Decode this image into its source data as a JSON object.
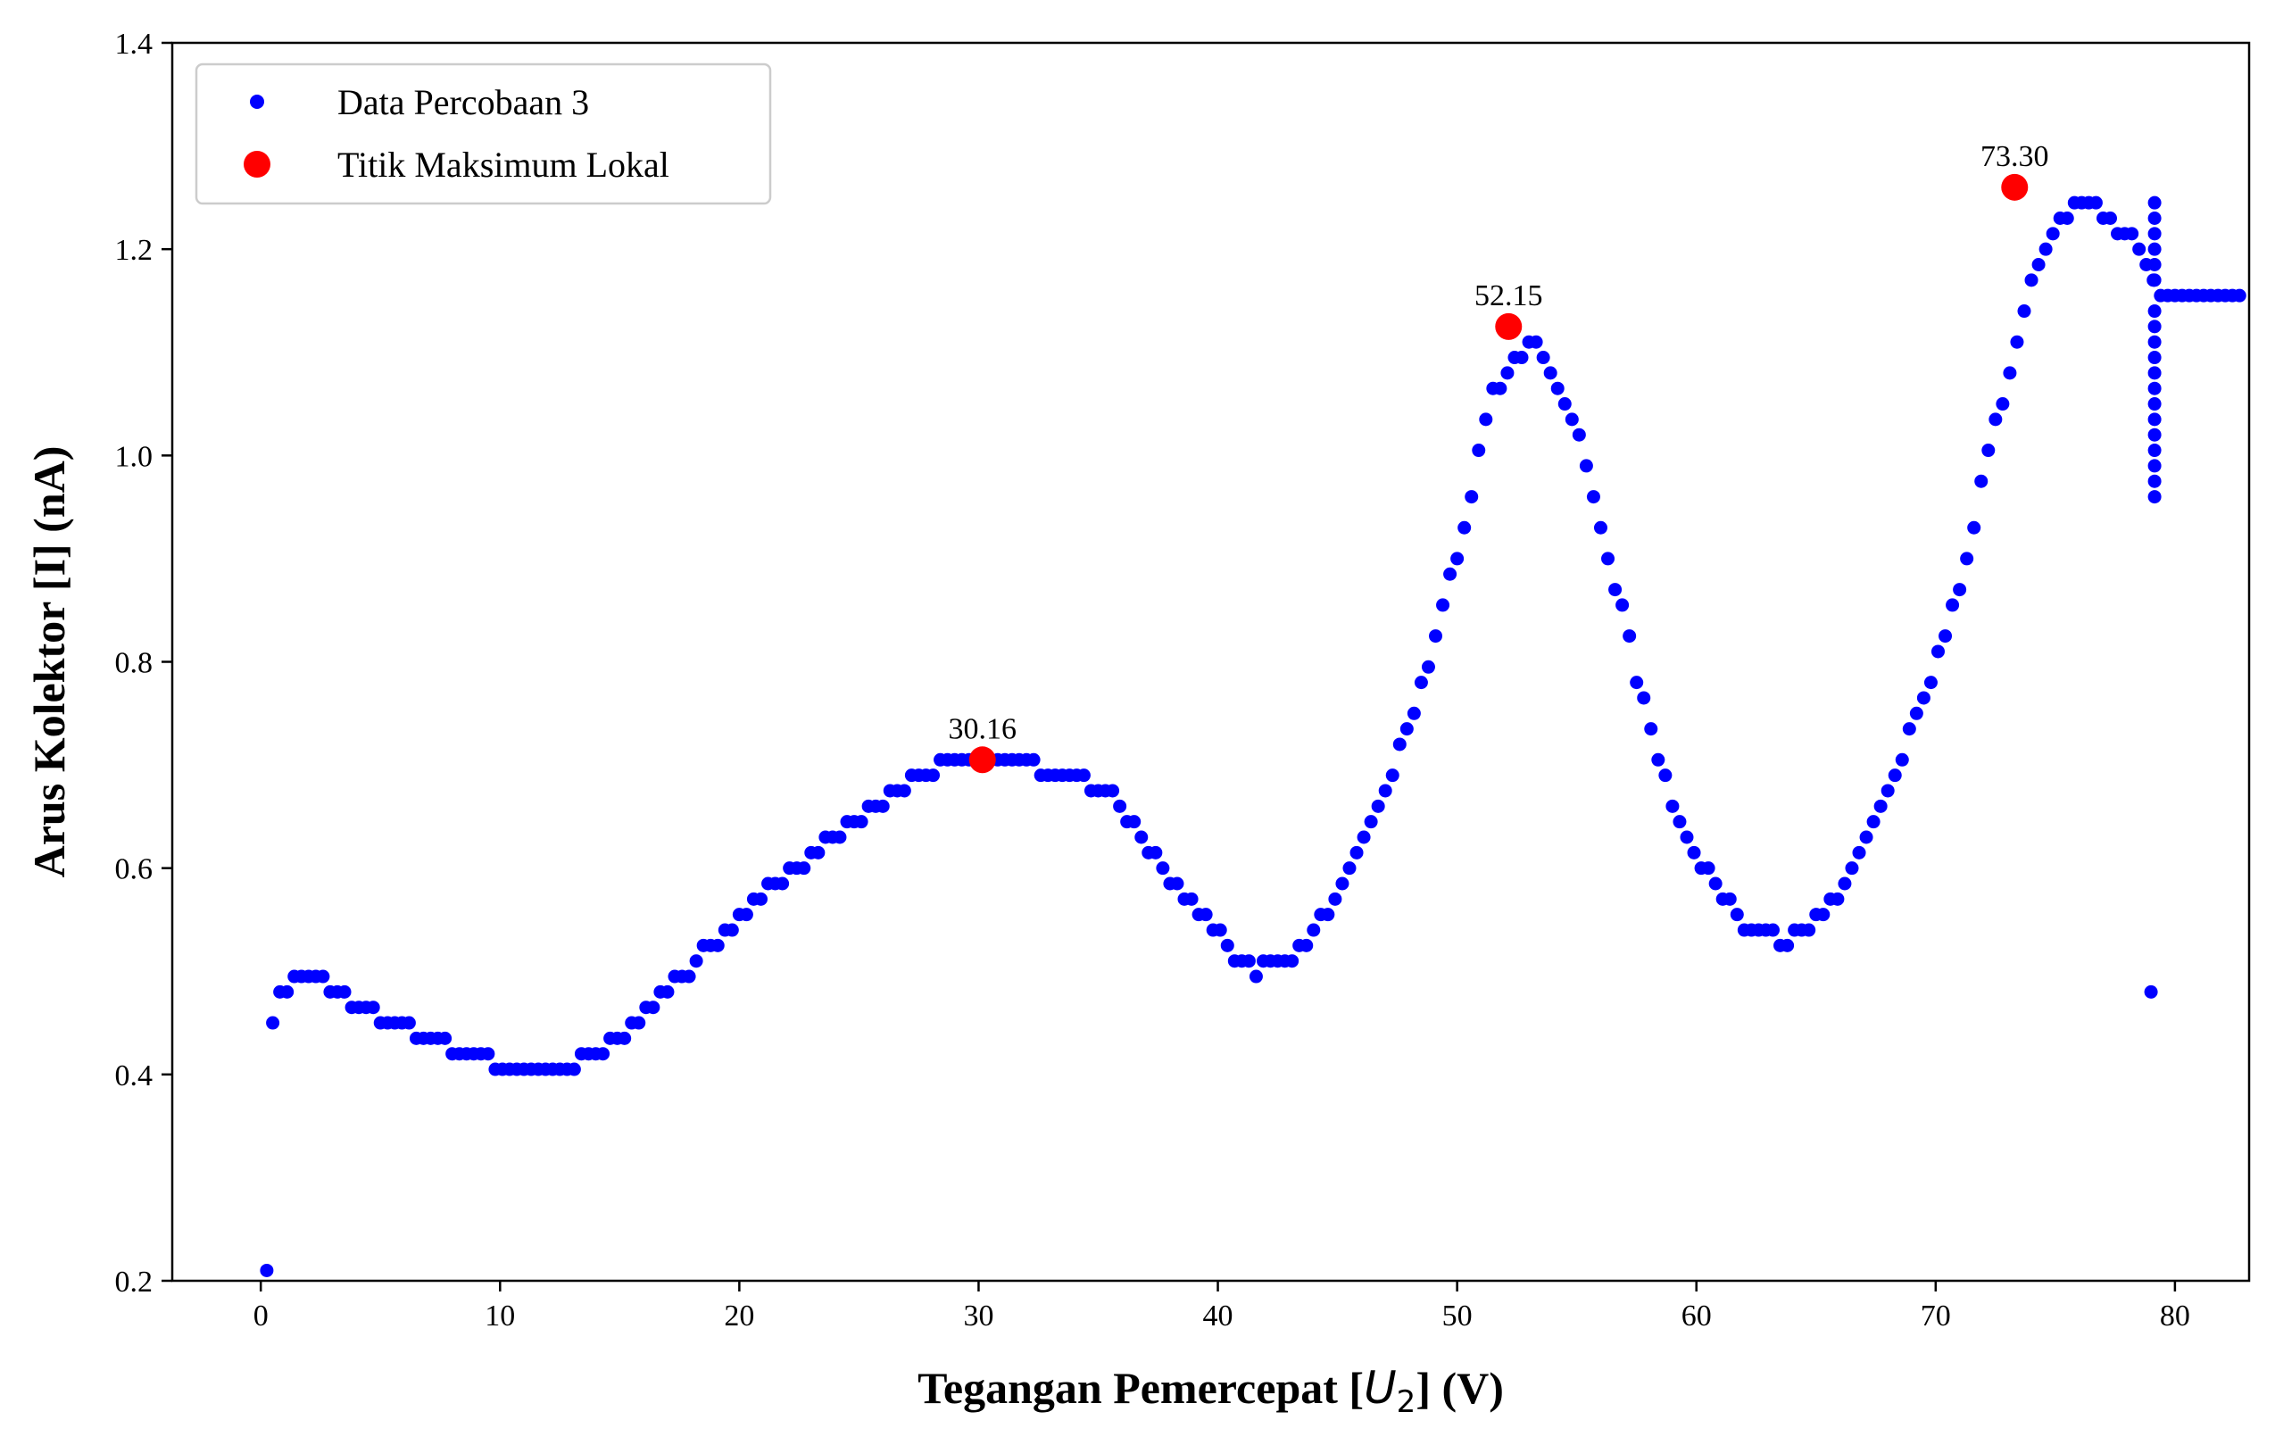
{
  "chart_data": {
    "type": "scatter",
    "xlabel_prefix": "Tegangan Pemercepat [",
    "xlabel_math_var": "U",
    "xlabel_math_sub": "2",
    "xlabel_suffix": "] (V)",
    "ylabel": "Arus Kolektor [I] (nA)",
    "xlim": [
      -3.7,
      83.1
    ],
    "ylim": [
      0.2,
      1.4
    ],
    "xticks": [
      0,
      10,
      20,
      30,
      40,
      50,
      60,
      70,
      80
    ],
    "yticks": [
      0.2,
      0.4,
      0.6,
      0.8,
      1.0,
      1.2,
      1.4
    ],
    "ytick_labels": [
      "0.2",
      "0.4",
      "0.6",
      "0.8",
      "1.0",
      "1.2",
      "1.4"
    ],
    "grid": false,
    "legend_position": "upper-left",
    "series": [
      {
        "name": "Data Percobaan 3",
        "color": "#0000ff",
        "marker": "small-dot",
        "points": [
          [
            0.25,
            0.21
          ],
          [
            0.5,
            0.45
          ],
          [
            0.8,
            0.48
          ],
          [
            1.1,
            0.48
          ],
          [
            1.4,
            0.495
          ],
          [
            1.7,
            0.495
          ],
          [
            2.0,
            0.495
          ],
          [
            2.3,
            0.495
          ],
          [
            2.6,
            0.495
          ],
          [
            2.9,
            0.48
          ],
          [
            3.2,
            0.48
          ],
          [
            3.5,
            0.48
          ],
          [
            3.8,
            0.465
          ],
          [
            4.1,
            0.465
          ],
          [
            4.4,
            0.465
          ],
          [
            4.7,
            0.465
          ],
          [
            5.0,
            0.45
          ],
          [
            5.3,
            0.45
          ],
          [
            5.6,
            0.45
          ],
          [
            5.9,
            0.45
          ],
          [
            6.2,
            0.45
          ],
          [
            6.5,
            0.435
          ],
          [
            6.8,
            0.435
          ],
          [
            7.1,
            0.435
          ],
          [
            7.4,
            0.435
          ],
          [
            7.7,
            0.435
          ],
          [
            8.0,
            0.42
          ],
          [
            8.3,
            0.42
          ],
          [
            8.6,
            0.42
          ],
          [
            8.9,
            0.42
          ],
          [
            9.2,
            0.42
          ],
          [
            9.5,
            0.42
          ],
          [
            9.8,
            0.405
          ],
          [
            10.1,
            0.405
          ],
          [
            10.4,
            0.405
          ],
          [
            10.7,
            0.405
          ],
          [
            11.0,
            0.405
          ],
          [
            11.3,
            0.405
          ],
          [
            11.6,
            0.405
          ],
          [
            11.9,
            0.405
          ],
          [
            12.2,
            0.405
          ],
          [
            12.5,
            0.405
          ],
          [
            12.8,
            0.405
          ],
          [
            13.1,
            0.405
          ],
          [
            13.4,
            0.42
          ],
          [
            13.7,
            0.42
          ],
          [
            14.0,
            0.42
          ],
          [
            14.3,
            0.42
          ],
          [
            14.6,
            0.435
          ],
          [
            14.9,
            0.435
          ],
          [
            15.2,
            0.435
          ],
          [
            15.5,
            0.45
          ],
          [
            15.8,
            0.45
          ],
          [
            16.1,
            0.465
          ],
          [
            16.4,
            0.465
          ],
          [
            16.7,
            0.48
          ],
          [
            17.0,
            0.48
          ],
          [
            17.3,
            0.495
          ],
          [
            17.6,
            0.495
          ],
          [
            17.9,
            0.495
          ],
          [
            18.2,
            0.51
          ],
          [
            18.5,
            0.525
          ],
          [
            18.8,
            0.525
          ],
          [
            19.1,
            0.525
          ],
          [
            19.4,
            0.54
          ],
          [
            19.7,
            0.54
          ],
          [
            20.0,
            0.555
          ],
          [
            20.3,
            0.555
          ],
          [
            20.6,
            0.57
          ],
          [
            20.9,
            0.57
          ],
          [
            21.2,
            0.585
          ],
          [
            21.5,
            0.585
          ],
          [
            21.8,
            0.585
          ],
          [
            22.1,
            0.6
          ],
          [
            22.4,
            0.6
          ],
          [
            22.7,
            0.6
          ],
          [
            23.0,
            0.615
          ],
          [
            23.3,
            0.615
          ],
          [
            23.6,
            0.63
          ],
          [
            23.9,
            0.63
          ],
          [
            24.2,
            0.63
          ],
          [
            24.5,
            0.645
          ],
          [
            24.8,
            0.645
          ],
          [
            25.1,
            0.645
          ],
          [
            25.4,
            0.66
          ],
          [
            25.7,
            0.66
          ],
          [
            26.0,
            0.66
          ],
          [
            26.3,
            0.675
          ],
          [
            26.6,
            0.675
          ],
          [
            26.9,
            0.675
          ],
          [
            27.2,
            0.69
          ],
          [
            27.5,
            0.69
          ],
          [
            27.8,
            0.69
          ],
          [
            28.1,
            0.69
          ],
          [
            28.4,
            0.705
          ],
          [
            28.7,
            0.705
          ],
          [
            29.0,
            0.705
          ],
          [
            29.3,
            0.705
          ],
          [
            29.6,
            0.705
          ],
          [
            29.9,
            0.705
          ],
          [
            30.2,
            0.705
          ],
          [
            30.5,
            0.705
          ],
          [
            30.8,
            0.705
          ],
          [
            31.1,
            0.705
          ],
          [
            31.4,
            0.705
          ],
          [
            31.7,
            0.705
          ],
          [
            32.0,
            0.705
          ],
          [
            32.3,
            0.705
          ],
          [
            32.6,
            0.69
          ],
          [
            32.9,
            0.69
          ],
          [
            33.2,
            0.69
          ],
          [
            33.5,
            0.69
          ],
          [
            33.8,
            0.69
          ],
          [
            34.1,
            0.69
          ],
          [
            34.4,
            0.69
          ],
          [
            34.7,
            0.675
          ],
          [
            35.0,
            0.675
          ],
          [
            35.3,
            0.675
          ],
          [
            35.6,
            0.675
          ],
          [
            35.9,
            0.66
          ],
          [
            36.2,
            0.645
          ],
          [
            36.5,
            0.645
          ],
          [
            36.8,
            0.63
          ],
          [
            37.1,
            0.615
          ],
          [
            37.4,
            0.615
          ],
          [
            37.7,
            0.6
          ],
          [
            38.0,
            0.585
          ],
          [
            38.3,
            0.585
          ],
          [
            38.6,
            0.57
          ],
          [
            38.9,
            0.57
          ],
          [
            39.2,
            0.555
          ],
          [
            39.5,
            0.555
          ],
          [
            39.8,
            0.54
          ],
          [
            40.1,
            0.54
          ],
          [
            40.4,
            0.525
          ],
          [
            40.7,
            0.51
          ],
          [
            41.0,
            0.51
          ],
          [
            41.3,
            0.51
          ],
          [
            41.6,
            0.495
          ],
          [
            41.9,
            0.51
          ],
          [
            42.2,
            0.51
          ],
          [
            42.5,
            0.51
          ],
          [
            42.8,
            0.51
          ],
          [
            43.1,
            0.51
          ],
          [
            43.4,
            0.525
          ],
          [
            43.7,
            0.525
          ],
          [
            44.0,
            0.54
          ],
          [
            44.3,
            0.555
          ],
          [
            44.6,
            0.555
          ],
          [
            44.9,
            0.57
          ],
          [
            45.2,
            0.585
          ],
          [
            45.5,
            0.6
          ],
          [
            45.8,
            0.615
          ],
          [
            46.1,
            0.63
          ],
          [
            46.4,
            0.645
          ],
          [
            46.7,
            0.66
          ],
          [
            47.0,
            0.675
          ],
          [
            47.3,
            0.69
          ],
          [
            47.6,
            0.72
          ],
          [
            47.9,
            0.735
          ],
          [
            48.2,
            0.75
          ],
          [
            48.5,
            0.78
          ],
          [
            48.8,
            0.795
          ],
          [
            49.1,
            0.825
          ],
          [
            49.4,
            0.855
          ],
          [
            49.7,
            0.885
          ],
          [
            50.0,
            0.9
          ],
          [
            50.3,
            0.93
          ],
          [
            50.6,
            0.96
          ],
          [
            50.9,
            1.005
          ],
          [
            51.2,
            1.035
          ],
          [
            51.5,
            1.065
          ],
          [
            51.8,
            1.065
          ],
          [
            52.1,
            1.08
          ],
          [
            52.4,
            1.095
          ],
          [
            52.7,
            1.095
          ],
          [
            53.0,
            1.11
          ],
          [
            53.3,
            1.11
          ],
          [
            53.6,
            1.095
          ],
          [
            53.9,
            1.08
          ],
          [
            54.2,
            1.065
          ],
          [
            54.5,
            1.05
          ],
          [
            54.8,
            1.035
          ],
          [
            55.1,
            1.02
          ],
          [
            55.4,
            0.99
          ],
          [
            55.7,
            0.96
          ],
          [
            56.0,
            0.93
          ],
          [
            56.3,
            0.9
          ],
          [
            56.6,
            0.87
          ],
          [
            56.9,
            0.855
          ],
          [
            57.2,
            0.825
          ],
          [
            57.5,
            0.78
          ],
          [
            57.8,
            0.765
          ],
          [
            58.1,
            0.735
          ],
          [
            58.4,
            0.705
          ],
          [
            58.7,
            0.69
          ],
          [
            59.0,
            0.66
          ],
          [
            59.3,
            0.645
          ],
          [
            59.6,
            0.63
          ],
          [
            59.9,
            0.615
          ],
          [
            60.2,
            0.6
          ],
          [
            60.5,
            0.6
          ],
          [
            60.8,
            0.585
          ],
          [
            61.1,
            0.57
          ],
          [
            61.4,
            0.57
          ],
          [
            61.7,
            0.555
          ],
          [
            62.0,
            0.54
          ],
          [
            62.3,
            0.54
          ],
          [
            62.6,
            0.54
          ],
          [
            62.9,
            0.54
          ],
          [
            63.2,
            0.54
          ],
          [
            63.5,
            0.525
          ],
          [
            63.8,
            0.525
          ],
          [
            64.1,
            0.54
          ],
          [
            64.4,
            0.54
          ],
          [
            64.7,
            0.54
          ],
          [
            65.0,
            0.555
          ],
          [
            65.3,
            0.555
          ],
          [
            65.6,
            0.57
          ],
          [
            65.9,
            0.57
          ],
          [
            66.2,
            0.585
          ],
          [
            66.5,
            0.6
          ],
          [
            66.8,
            0.615
          ],
          [
            67.1,
            0.63
          ],
          [
            67.4,
            0.645
          ],
          [
            67.7,
            0.66
          ],
          [
            68.0,
            0.675
          ],
          [
            68.3,
            0.69
          ],
          [
            68.6,
            0.705
          ],
          [
            68.9,
            0.735
          ],
          [
            69.2,
            0.75
          ],
          [
            69.5,
            0.765
          ],
          [
            69.8,
            0.78
          ],
          [
            70.1,
            0.81
          ],
          [
            70.4,
            0.825
          ],
          [
            70.7,
            0.855
          ],
          [
            71.0,
            0.87
          ],
          [
            71.3,
            0.9
          ],
          [
            71.6,
            0.93
          ],
          [
            71.9,
            0.975
          ],
          [
            72.2,
            1.005
          ],
          [
            72.5,
            1.035
          ],
          [
            72.8,
            1.05
          ],
          [
            73.1,
            1.08
          ],
          [
            73.4,
            1.11
          ],
          [
            73.7,
            1.14
          ],
          [
            74.0,
            1.17
          ],
          [
            74.3,
            1.185
          ],
          [
            74.6,
            1.2
          ],
          [
            74.9,
            1.215
          ],
          [
            75.2,
            1.23
          ],
          [
            75.5,
            1.23
          ],
          [
            75.8,
            1.245
          ],
          [
            76.1,
            1.245
          ],
          [
            76.4,
            1.245
          ],
          [
            76.7,
            1.245
          ],
          [
            77.0,
            1.23
          ],
          [
            77.3,
            1.23
          ],
          [
            77.6,
            1.215
          ],
          [
            77.9,
            1.215
          ],
          [
            78.2,
            1.215
          ],
          [
            78.5,
            1.2
          ],
          [
            78.8,
            1.185
          ],
          [
            79.1,
            1.17
          ],
          [
            79.4,
            1.155
          ],
          [
            79.7,
            1.155
          ],
          [
            80.0,
            1.155
          ],
          [
            80.3,
            1.155
          ],
          [
            80.6,
            1.155
          ],
          [
            80.9,
            1.155
          ],
          [
            81.2,
            1.155
          ],
          [
            81.5,
            1.155
          ],
          [
            81.8,
            1.155
          ],
          [
            82.1,
            1.155
          ],
          [
            82.4,
            1.155
          ],
          [
            82.7,
            1.155
          ],
          [
            79.0,
            0.48
          ],
          [
            79.15,
            1.245
          ],
          [
            79.15,
            1.23
          ],
          [
            79.15,
            1.215
          ],
          [
            79.15,
            1.2
          ],
          [
            79.15,
            1.185
          ],
          [
            79.15,
            1.17
          ],
          [
            79.15,
            1.14
          ],
          [
            79.15,
            1.125
          ],
          [
            79.15,
            1.11
          ],
          [
            79.15,
            1.095
          ],
          [
            79.15,
            1.08
          ],
          [
            79.15,
            1.065
          ],
          [
            79.15,
            1.05
          ],
          [
            79.15,
            1.035
          ],
          [
            79.15,
            1.02
          ],
          [
            79.15,
            1.005
          ],
          [
            79.15,
            0.99
          ],
          [
            79.15,
            0.975
          ],
          [
            79.15,
            0.96
          ]
        ]
      },
      {
        "name": "Titik Maksimum Lokal",
        "color": "#ff0000",
        "marker": "large-dot",
        "points": [
          [
            30.16,
            0.705
          ],
          [
            52.15,
            1.125
          ],
          [
            73.3,
            1.26
          ]
        ],
        "labels": [
          "30.16",
          "52.15",
          "73.30"
        ]
      }
    ]
  }
}
